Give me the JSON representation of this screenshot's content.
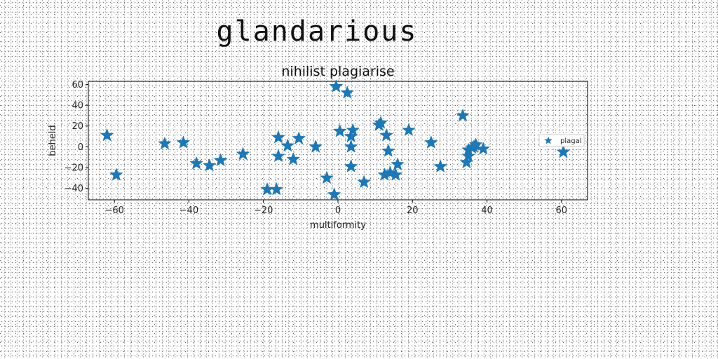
{
  "figure_title": "glandarious",
  "chart_data": {
    "type": "scatter",
    "title": "nihilist plagiarise",
    "xlabel": "multiformity",
    "ylabel": "beheld",
    "xlim": [
      -67,
      67
    ],
    "ylim": [
      -51,
      63
    ],
    "xticks": [
      -60,
      -40,
      -20,
      0,
      20,
      40,
      60
    ],
    "yticks": [
      -40,
      -20,
      0,
      20,
      40,
      60
    ],
    "grid": false,
    "legend_position": "center-right",
    "marker": "star",
    "series": [
      {
        "name": "plagal",
        "color": "#1f77b4",
        "points": [
          {
            "x": -62,
            "y": 11
          },
          {
            "x": -59.5,
            "y": -27
          },
          {
            "x": -46.5,
            "y": 3
          },
          {
            "x": -41.5,
            "y": 4
          },
          {
            "x": -38,
            "y": -16
          },
          {
            "x": -34.5,
            "y": -18
          },
          {
            "x": -31.5,
            "y": -13
          },
          {
            "x": -25.5,
            "y": -7
          },
          {
            "x": -19,
            "y": -41
          },
          {
            "x": -16.5,
            "y": -41
          },
          {
            "x": -16,
            "y": 9
          },
          {
            "x": -16,
            "y": -9
          },
          {
            "x": -13.5,
            "y": 1
          },
          {
            "x": -12,
            "y": -12
          },
          {
            "x": -10.5,
            "y": 8
          },
          {
            "x": -6,
            "y": 0
          },
          {
            "x": -3,
            "y": -30
          },
          {
            "x": -1,
            "y": -46
          },
          {
            "x": -0.5,
            "y": 58
          },
          {
            "x": 0.5,
            "y": 15
          },
          {
            "x": 2.5,
            "y": 52
          },
          {
            "x": 3.5,
            "y": 0
          },
          {
            "x": 3.5,
            "y": -19
          },
          {
            "x": 3.5,
            "y": 10
          },
          {
            "x": 4,
            "y": 16
          },
          {
            "x": 7,
            "y": -34
          },
          {
            "x": 11,
            "y": 21
          },
          {
            "x": 11.5,
            "y": 23
          },
          {
            "x": 12.5,
            "y": -27
          },
          {
            "x": 13,
            "y": 11
          },
          {
            "x": 13.5,
            "y": -4
          },
          {
            "x": 14,
            "y": -25
          },
          {
            "x": 15.5,
            "y": -27
          },
          {
            "x": 16,
            "y": -17
          },
          {
            "x": 19,
            "y": 16
          },
          {
            "x": 25,
            "y": 4
          },
          {
            "x": 27.5,
            "y": -19
          },
          {
            "x": 33.5,
            "y": 30
          },
          {
            "x": 34.5,
            "y": -15
          },
          {
            "x": 35,
            "y": -9
          },
          {
            "x": 35,
            "y": -3
          },
          {
            "x": 36,
            "y": -1
          },
          {
            "x": 36.5,
            "y": 0
          },
          {
            "x": 37,
            "y": 2
          },
          {
            "x": 39,
            "y": -2
          },
          {
            "x": 60.5,
            "y": -5
          }
        ]
      }
    ]
  }
}
